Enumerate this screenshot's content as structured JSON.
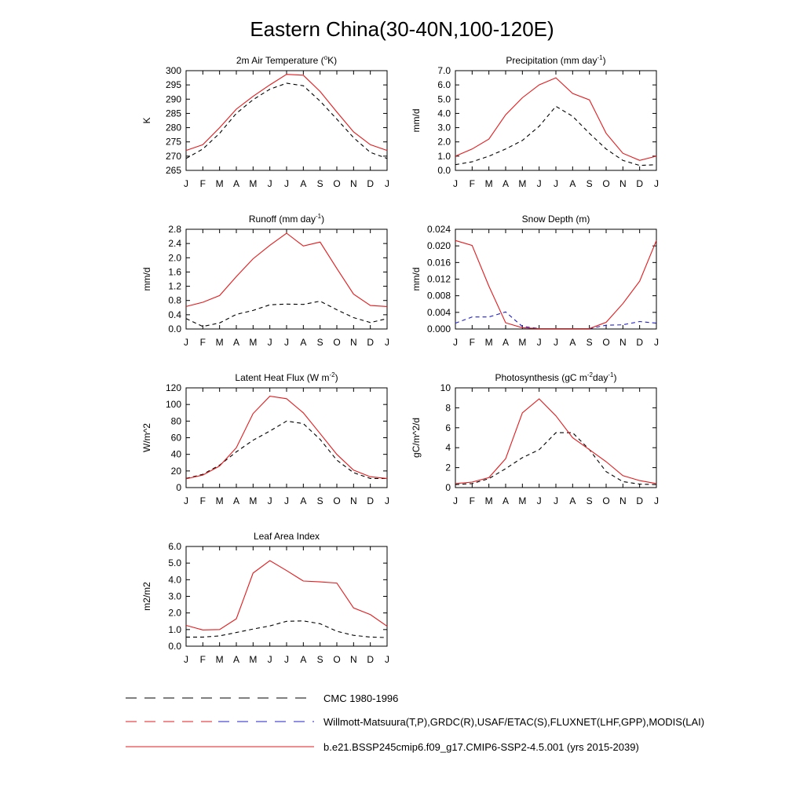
{
  "figure": {
    "title": "Eastern China(30-40N,100-120E)"
  },
  "legend": {
    "entries": [
      {
        "label": "CMC 1980-1996",
        "style": "dash-black"
      },
      {
        "label": "Willmott-Matsuura(T,P),GRDC(R),USAF/ETAC(S),FLUXNET(LHF,GPP),MODIS(LAI)",
        "style": "dash-red-blue"
      },
      {
        "label": "b.e21.BSSP245cmip6.f09_g17.CMIP6-SSP2-4.5.001 (yrs 2015-2039)",
        "style": "solid-red"
      }
    ]
  },
  "colors": {
    "model": "#e41a1c",
    "obs": "#000000",
    "obs_alt": "#1f1fd0"
  },
  "chart_data": [
    {
      "type": "line",
      "title": "2m Air Temperature (°K)",
      "title_parts": [
        "2m Air Temperature (",
        "o",
        "K)"
      ],
      "ylabel": "K",
      "categories": [
        "J",
        "F",
        "M",
        "A",
        "M",
        "J",
        "J",
        "A",
        "S",
        "O",
        "N",
        "D",
        "J"
      ],
      "ylim": [
        265,
        300
      ],
      "yticks": [
        265,
        270,
        275,
        280,
        285,
        290,
        295,
        300
      ],
      "ytick_labels": [
        "265",
        "270",
        "275",
        "280",
        "285",
        "290",
        "295",
        "300"
      ],
      "series": [
        {
          "role": "model",
          "values": [
            272,
            274,
            280,
            286.5,
            291,
            295,
            298.7,
            298.4,
            292.7,
            285.5,
            278.5,
            274,
            272
          ]
        },
        {
          "role": "obs",
          "values": [
            269.2,
            272.5,
            278,
            285,
            289.8,
            293.5,
            295.6,
            294.7,
            289.3,
            283,
            276.5,
            271.3,
            269.2
          ]
        }
      ]
    },
    {
      "type": "line",
      "title": "Precipitation (mm day-1)",
      "title_parts": [
        "Precipitation (mm day",
        "-1",
        ")"
      ],
      "ylabel": "mm/d",
      "categories": [
        "J",
        "F",
        "M",
        "A",
        "M",
        "J",
        "J",
        "A",
        "S",
        "O",
        "N",
        "D",
        "J"
      ],
      "ylim": [
        0,
        7
      ],
      "yticks": [
        0,
        1,
        2,
        3,
        4,
        5,
        6,
        7
      ],
      "ytick_labels": [
        "0.0",
        "1.0",
        "2.0",
        "3.0",
        "4.0",
        "5.0",
        "6.0",
        "7.0"
      ],
      "series": [
        {
          "role": "model",
          "values": [
            1.0,
            1.5,
            2.2,
            3.9,
            5.1,
            6.0,
            6.5,
            5.4,
            4.95,
            2.6,
            1.2,
            0.7,
            1.0
          ]
        },
        {
          "role": "obs",
          "values": [
            0.4,
            0.6,
            1.0,
            1.5,
            2.1,
            3.1,
            4.5,
            3.8,
            2.6,
            1.5,
            0.7,
            0.35,
            0.4
          ]
        }
      ]
    },
    {
      "type": "line",
      "title": "Runoff (mm day-1)",
      "title_parts": [
        "Runoff (mm day",
        "-1",
        ")"
      ],
      "ylabel": "mm/d",
      "categories": [
        "J",
        "F",
        "M",
        "A",
        "M",
        "J",
        "J",
        "A",
        "S",
        "O",
        "N",
        "D",
        "J"
      ],
      "ylim": [
        0,
        2.8
      ],
      "yticks": [
        0,
        0.4,
        0.8,
        1.2,
        1.6,
        2.0,
        2.4,
        2.8
      ],
      "ytick_labels": [
        "0.0",
        "0.4",
        "0.8",
        "1.2",
        "1.6",
        "2.0",
        "2.4",
        "2.8"
      ],
      "series": [
        {
          "role": "model",
          "values": [
            0.63,
            0.75,
            0.94,
            1.47,
            1.97,
            2.35,
            2.69,
            2.33,
            2.44,
            1.7,
            0.98,
            0.66,
            0.63
          ]
        },
        {
          "role": "obs",
          "values": [
            0.29,
            0.07,
            0.17,
            0.41,
            0.52,
            0.68,
            0.7,
            0.69,
            0.78,
            0.54,
            0.32,
            0.18,
            0.29
          ]
        }
      ]
    },
    {
      "type": "line",
      "title": "Snow Depth (m)",
      "title_parts": [
        "Snow Depth (m)",
        "",
        ""
      ],
      "ylabel": "mm/d",
      "categories": [
        "J",
        "F",
        "M",
        "A",
        "M",
        "J",
        "J",
        "A",
        "S",
        "O",
        "N",
        "D",
        "J"
      ],
      "ylim": [
        0,
        0.024
      ],
      "yticks": [
        0,
        0.004,
        0.008,
        0.012,
        0.016,
        0.02,
        0.024
      ],
      "ytick_labels": [
        "0.000",
        "0.004",
        "0.008",
        "0.012",
        "0.016",
        "0.020",
        "0.024"
      ],
      "series": [
        {
          "role": "model",
          "values": [
            0.0213,
            0.0201,
            0.0103,
            0.0015,
            0.0003,
            0.0001,
            0.0001,
            0.0001,
            0.0001,
            0.0016,
            0.0061,
            0.0115,
            0.0213
          ]
        },
        {
          "role": "obs",
          "values": [
            0,
            0,
            0,
            0,
            0,
            0,
            0,
            0,
            0,
            0,
            0,
            0,
            0
          ]
        },
        {
          "role": "obs_alt",
          "values": [
            0.0014,
            0.0029,
            0.0029,
            0.0041,
            0.0006,
            0.0001,
            0.0001,
            0.0001,
            0.0001,
            0.0009,
            0.001,
            0.0018,
            0.0014
          ]
        }
      ]
    },
    {
      "type": "line",
      "title": "Latent Heat Flux (W m-2)",
      "title_parts": [
        "Latent Heat Flux (W m",
        "-2",
        ")"
      ],
      "ylabel": "W/m^2",
      "categories": [
        "J",
        "F",
        "M",
        "A",
        "M",
        "J",
        "J",
        "A",
        "S",
        "O",
        "N",
        "D",
        "J"
      ],
      "ylim": [
        0,
        120
      ],
      "yticks": [
        0,
        20,
        40,
        60,
        80,
        100,
        120
      ],
      "ytick_labels": [
        "0",
        "20",
        "40",
        "60",
        "80",
        "100",
        "120"
      ],
      "series": [
        {
          "role": "model",
          "values": [
            10.5,
            15,
            26,
            48,
            89,
            110,
            107,
            90,
            65,
            40,
            21,
            13,
            11
          ]
        },
        {
          "role": "obs",
          "values": [
            11,
            16,
            27,
            43,
            57,
            68,
            80,
            77,
            58,
            33,
            18,
            11,
            11
          ]
        }
      ]
    },
    {
      "type": "line",
      "title": "Photosynthesis (gC m-2day-1)",
      "title_parts": [
        "Photosynthesis (gC m",
        "-2",
        "day",
        "-1",
        ")"
      ],
      "ylabel": "gC/m^2/d",
      "categories": [
        "J",
        "F",
        "M",
        "A",
        "M",
        "J",
        "J",
        "A",
        "S",
        "O",
        "N",
        "D",
        "J"
      ],
      "ylim": [
        0,
        10
      ],
      "yticks": [
        0,
        2,
        4,
        6,
        8,
        10
      ],
      "ytick_labels": [
        "0",
        "2",
        "4",
        "6",
        "8",
        "10"
      ],
      "series": [
        {
          "role": "model",
          "values": [
            0.4,
            0.55,
            1.0,
            2.9,
            7.5,
            8.9,
            7.2,
            5.0,
            3.8,
            2.6,
            1.2,
            0.7,
            0.4
          ]
        },
        {
          "role": "obs",
          "values": [
            0.3,
            0.4,
            0.9,
            1.9,
            3.0,
            3.8,
            5.5,
            5.5,
            3.8,
            1.6,
            0.6,
            0.35,
            0.3
          ]
        }
      ]
    },
    {
      "type": "line",
      "title": "Leaf Area Index",
      "title_parts": [
        "Leaf Area Index",
        "",
        ""
      ],
      "ylabel": "m2/m2",
      "categories": [
        "J",
        "F",
        "M",
        "A",
        "M",
        "J",
        "J",
        "A",
        "S",
        "O",
        "N",
        "D",
        "J"
      ],
      "ylim": [
        0,
        6
      ],
      "yticks": [
        0,
        1,
        2,
        3,
        4,
        5,
        6
      ],
      "ytick_labels": [
        "0.0",
        "1.0",
        "2.0",
        "3.0",
        "4.0",
        "5.0",
        "6.0"
      ],
      "series": [
        {
          "role": "model",
          "values": [
            1.25,
            0.98,
            1.0,
            1.65,
            4.4,
            5.15,
            4.55,
            3.92,
            3.87,
            3.8,
            2.3,
            1.9,
            1.2
          ]
        },
        {
          "role": "obs",
          "values": [
            0.55,
            0.55,
            0.62,
            0.82,
            1.03,
            1.22,
            1.5,
            1.52,
            1.35,
            0.9,
            0.65,
            0.55,
            0.52
          ]
        }
      ]
    }
  ]
}
